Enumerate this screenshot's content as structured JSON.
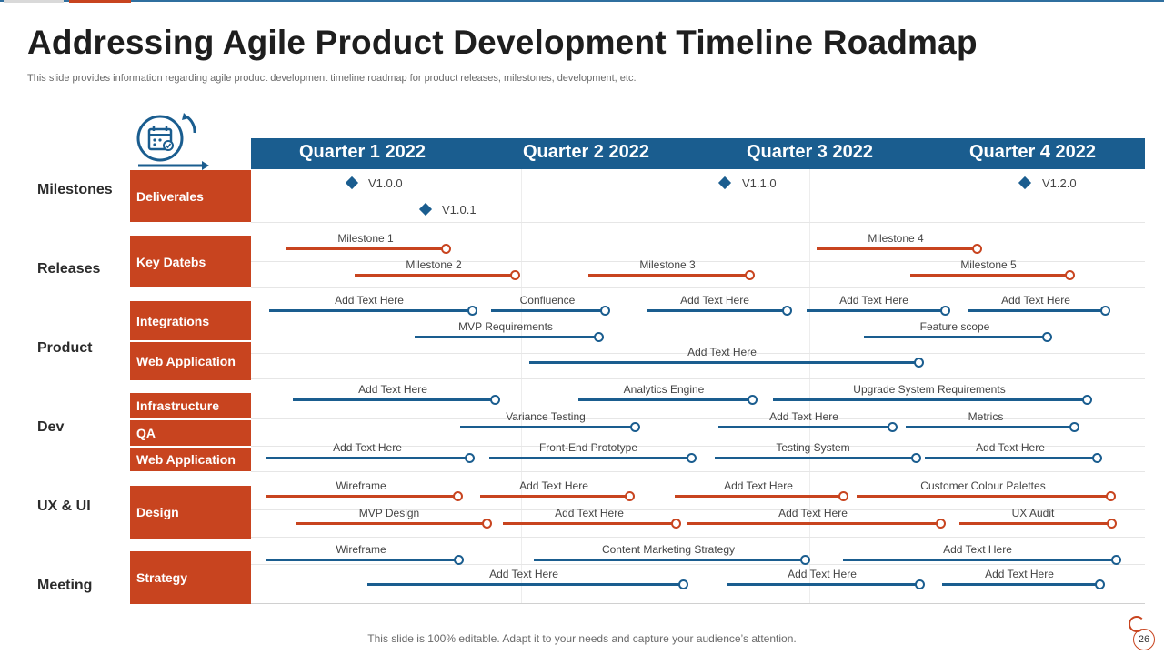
{
  "title": "Addressing Agile Product Development Timeline Roadmap",
  "subtitle": "This slide provides information regarding agile product development timeline roadmap for product releases, milestones, development, etc.",
  "footer": "This slide is 100% editable. Adapt it to your needs and capture your audience’s attention.",
  "page_number": "26",
  "icon": "calendar-cycle-icon",
  "colors": {
    "orange": "#c8441f",
    "blue": "#1a5d8f",
    "text": "#2b2b2b"
  },
  "quarters": [
    "Quarter 1 2022",
    "Quarter 2 2022",
    "Quarter 3 2022",
    "Quarter 4 2022"
  ],
  "groups": [
    "Milestones",
    "Releases",
    "Product",
    "Dev",
    "UX & UI",
    "Meeting"
  ],
  "row_labels": [
    "Deliverales",
    "Key Datebs",
    "Integrations",
    "Web Application",
    "Infrastructure",
    "QA",
    "Web Application",
    "Design",
    "Strategy"
  ],
  "deliverables": [
    "V1.0.0",
    "V1.1.0",
    "V1.2.0",
    "V1.0.1"
  ],
  "bars": [
    {
      "label": "Milestone 1",
      "color": "orange"
    },
    {
      "label": "Milestone 4",
      "color": "orange"
    },
    {
      "label": "Milestone 2",
      "color": "orange"
    },
    {
      "label": "Milestone 3",
      "color": "orange"
    },
    {
      "label": "Milestone 5",
      "color": "orange"
    },
    {
      "label": "Add Text Here",
      "color": "blue"
    },
    {
      "label": "Confluence",
      "color": "blue"
    },
    {
      "label": "Add Text Here",
      "color": "blue"
    },
    {
      "label": "Add Text Here",
      "color": "blue"
    },
    {
      "label": "Add Text Here",
      "color": "blue"
    },
    {
      "label": "MVP  Requirements",
      "color": "blue"
    },
    {
      "label": "Feature scope",
      "color": "blue"
    },
    {
      "label": "Add Text Here",
      "color": "blue"
    },
    {
      "label": "Add Text Here",
      "color": "blue"
    },
    {
      "label": "Analytics Engine",
      "color": "blue"
    },
    {
      "label": "Upgrade System Requirements",
      "color": "blue"
    },
    {
      "label": "Variance Testing",
      "color": "blue"
    },
    {
      "label": "Add Text Here",
      "color": "blue"
    },
    {
      "label": "Metrics",
      "color": "blue"
    },
    {
      "label": "Add Text Here",
      "color": "blue"
    },
    {
      "label": "Front-End Prototype",
      "color": "blue"
    },
    {
      "label": "Testing System",
      "color": "blue"
    },
    {
      "label": "Add Text Here",
      "color": "blue"
    },
    {
      "label": "Wireframe",
      "color": "orange"
    },
    {
      "label": "Add Text Here",
      "color": "orange"
    },
    {
      "label": "Add Text Here",
      "color": "orange"
    },
    {
      "label": "Customer Colour Palettes",
      "color": "orange"
    },
    {
      "label": "MVP  Design",
      "color": "orange"
    },
    {
      "label": "Add Text Here",
      "color": "orange"
    },
    {
      "label": "Add Text Here",
      "color": "orange"
    },
    {
      "label": "UX Audit",
      "color": "orange"
    },
    {
      "label": "Wireframe",
      "color": "blue"
    },
    {
      "label": "Content Marketing Strategy",
      "color": "blue"
    },
    {
      "label": "Add Text Here",
      "color": "blue"
    },
    {
      "label": "Add Text Here",
      "color": "blue"
    },
    {
      "label": "Add Text Here",
      "color": "blue"
    },
    {
      "label": "Add Text Here",
      "color": "blue"
    }
  ]
}
